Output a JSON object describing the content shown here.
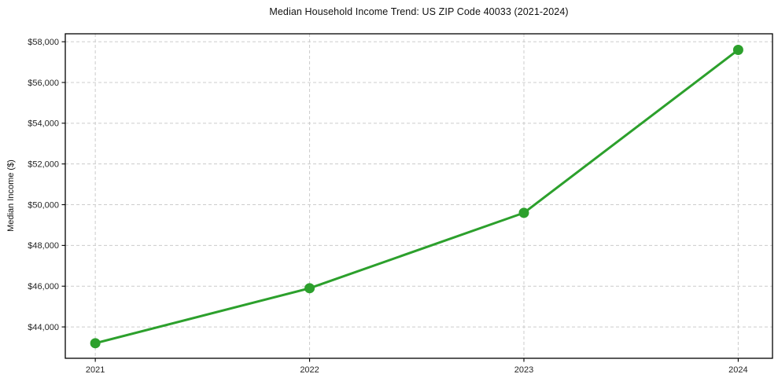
{
  "figure": {
    "background": "#ffffff"
  },
  "chart_data": {
    "type": "line",
    "title": "Median Household Income Trend: US ZIP Code 40033 (2021-2024)",
    "xlabel": "",
    "ylabel": "Median Income ($)",
    "x": [
      2021,
      2022,
      2023,
      2024
    ],
    "x_tick_labels": [
      "2021",
      "2022",
      "2023",
      "2024"
    ],
    "series": [
      {
        "name": "Median Household Income",
        "values": [
          43200,
          45900,
          49600,
          57600
        ],
        "color": "#2ca02c",
        "marker": "circle",
        "line_width": 3,
        "marker_radius": 6.5
      }
    ],
    "y_ticks": [
      44000,
      46000,
      48000,
      50000,
      52000,
      54000,
      56000,
      58000
    ],
    "y_tick_labels": [
      "$44,000",
      "$46,000",
      "$48,000",
      "$50,000",
      "$52,000",
      "$54,000",
      "$56,000",
      "$58,000"
    ],
    "xlim": [
      2020.86,
      2024.16
    ],
    "ylim": [
      42460,
      58390
    ],
    "grid": true,
    "grid_style": "dashed",
    "legend_position": "none",
    "colors": {
      "line": "#2ca02c",
      "grid": "#cccccc",
      "axis": "#000000",
      "tick_text": "#262626",
      "title_text": "#111111"
    }
  }
}
